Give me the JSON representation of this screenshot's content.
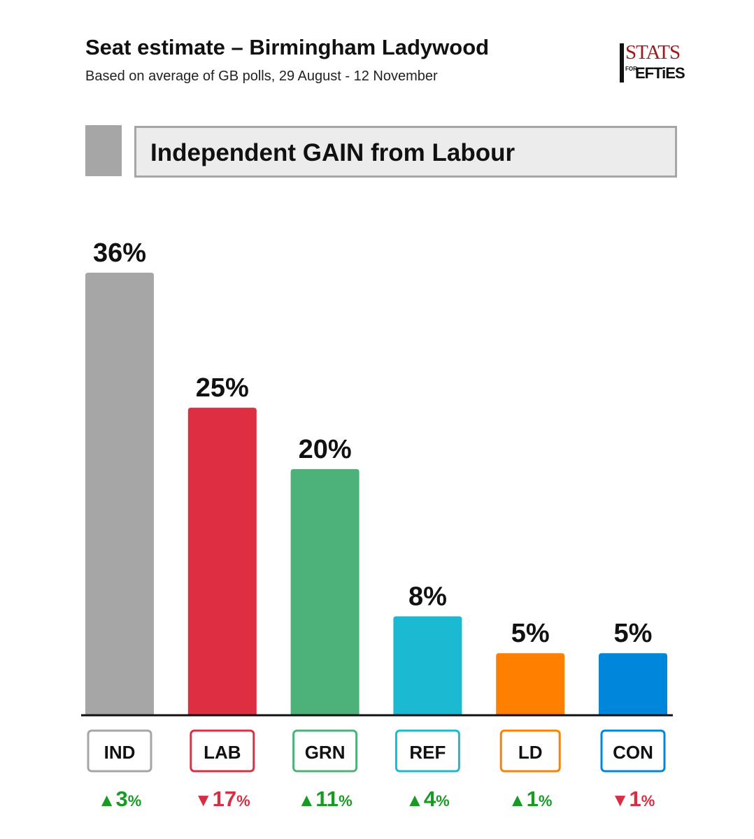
{
  "header": {
    "title": "Seat estimate – Birmingham Ladywood",
    "subtitle": "Based on average of GB polls, 29 August - 12 November"
  },
  "logo": {
    "stats_text": "STATS",
    "for_text": "FOR",
    "lefties_text": "EFTiES"
  },
  "result": {
    "text": "Independent GAIN from Labour",
    "swatch_color": "#a6a6a6"
  },
  "chart_data": {
    "type": "bar",
    "categories": [
      "IND",
      "LAB",
      "GRN",
      "REF",
      "LD",
      "CON"
    ],
    "values": [
      36,
      25,
      20,
      8,
      5,
      5
    ],
    "value_labels": [
      "36%",
      "25%",
      "20%",
      "8%",
      "5%",
      "5%"
    ],
    "colors": [
      "#a6a6a6",
      "#de2f42",
      "#4cb27a",
      "#1cb9d3",
      "#ff8000",
      "#0087dc"
    ],
    "changes": [
      {
        "direction": "up",
        "arrow": "▲",
        "value": "3",
        "unit": "%"
      },
      {
        "direction": "down",
        "arrow": "▼",
        "value": "17",
        "unit": "%"
      },
      {
        "direction": "up",
        "arrow": "▲",
        "value": "11",
        "unit": "%"
      },
      {
        "direction": "up",
        "arrow": "▲",
        "value": "4",
        "unit": "%"
      },
      {
        "direction": "up",
        "arrow": "▲",
        "value": "1",
        "unit": "%"
      },
      {
        "direction": "down",
        "arrow": "▼",
        "value": "1",
        "unit": "%"
      }
    ],
    "change_colors": {
      "up": "#189a24",
      "down": "#d42f42"
    },
    "ylim": [
      0,
      36
    ],
    "grid": false,
    "title": "",
    "xlabel": "",
    "ylabel": ""
  }
}
